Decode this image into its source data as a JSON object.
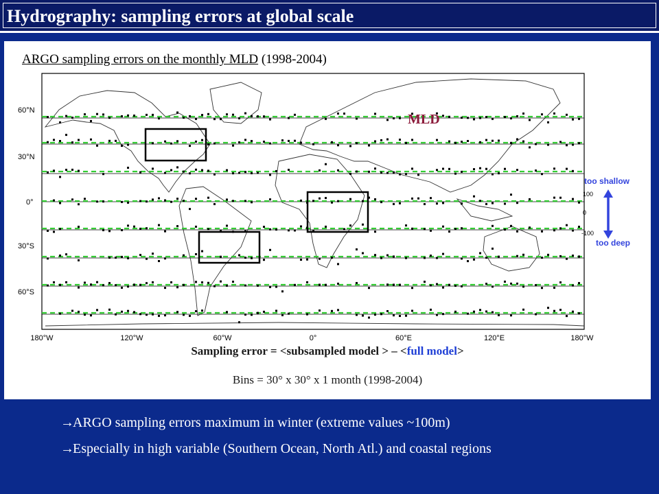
{
  "slide": {
    "title": "Hydrography: sampling errors at global scale"
  },
  "panel": {
    "subtitle_underlined": "ARGO sampling errors on the monthly MLD",
    "subtitle_years": "(1998-2004)",
    "map_label": "MLD",
    "lat_labels": [
      "60°N",
      "30°N",
      "0°",
      "30°S",
      "60°S"
    ],
    "lon_labels": [
      "180°W",
      "120°W",
      "60°W",
      "0°",
      "60°E",
      "120°E",
      "180°W"
    ],
    "scale": {
      "top_label": "too shallow",
      "bottom_label": "too deep",
      "top_value": "100",
      "zero_value": "0",
      "bottom_value": "-100"
    },
    "formula": {
      "prefix": "Sampling error = <subsampled model > – <",
      "highlight": "full model",
      "suffix": ">"
    },
    "bins": "Bins = 30° x 30° x 1 month (1998-2004)"
  },
  "bullets": [
    "ARGO sampling errors maximum in winter (extreme values ~100m)",
    "Especially in high variable (Southern Ocean, North Atl.) and coastal regions"
  ],
  "colors": {
    "background": "#0b2a8c",
    "title_bar": "#0a1a66",
    "dashed_line": "#33cc33",
    "mld_label": "#8b1a3a",
    "scale_arrow": "#3344dd"
  }
}
